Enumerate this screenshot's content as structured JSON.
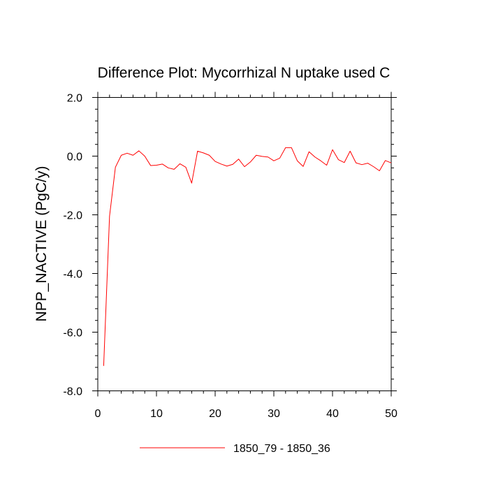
{
  "chart_data": {
    "type": "line",
    "title": "Difference Plot: Mycorrhizal N uptake used C",
    "xlabel": "",
    "ylabel": "NPP_NACTIVE  (PgC/y)",
    "xlim": [
      0,
      50
    ],
    "ylim": [
      -8.0,
      2.0
    ],
    "x_ticks": [
      0,
      10,
      20,
      30,
      40,
      50
    ],
    "x_tick_labels": [
      "0",
      "10",
      "20",
      "30",
      "40",
      "50"
    ],
    "y_ticks": [
      -8.0,
      -6.0,
      -4.0,
      -2.0,
      0.0,
      2.0
    ],
    "y_tick_labels": [
      "-8.0",
      "-6.0",
      "-4.0",
      "-2.0",
      "0.0",
      "2.0"
    ],
    "grid": false,
    "legend_position": "bottom",
    "series": [
      {
        "name": "1850_79 - 1850_36",
        "color": "#ff0000",
        "x": [
          1,
          2,
          3,
          4,
          5,
          6,
          7,
          8,
          9,
          10,
          11,
          12,
          13,
          14,
          15,
          16,
          17,
          18,
          19,
          20,
          21,
          22,
          23,
          24,
          25,
          26,
          27,
          28,
          29,
          30,
          31,
          32,
          33,
          34,
          35,
          36,
          37,
          38,
          39,
          40,
          41,
          42,
          43,
          44,
          45,
          46,
          47,
          48,
          49,
          50
        ],
        "y": [
          -7.15,
          -2.05,
          -0.38,
          0.03,
          0.1,
          0.03,
          0.18,
          0.0,
          -0.32,
          -0.31,
          -0.27,
          -0.4,
          -0.45,
          -0.26,
          -0.38,
          -0.92,
          0.17,
          0.11,
          0.03,
          -0.18,
          -0.27,
          -0.34,
          -0.28,
          -0.1,
          -0.36,
          -0.2,
          0.03,
          -0.01,
          -0.03,
          -0.16,
          -0.07,
          0.29,
          0.29,
          -0.16,
          -0.35,
          0.15,
          -0.03,
          -0.16,
          -0.31,
          0.22,
          -0.12,
          -0.22,
          0.17,
          -0.23,
          -0.29,
          -0.24,
          -0.36,
          -0.5,
          -0.15,
          -0.23
        ]
      }
    ]
  }
}
